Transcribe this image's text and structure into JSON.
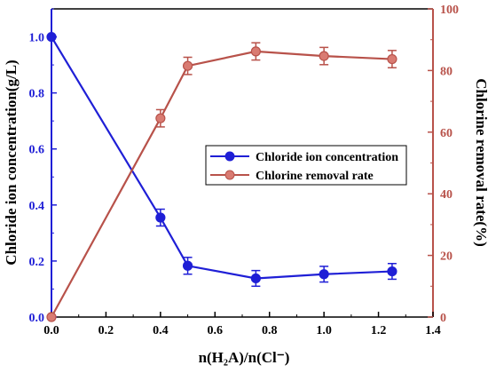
{
  "chart_data": {
    "type": "line",
    "title": "",
    "xlabel": "n(H₂A)/n(Cl⁻)",
    "ylabel_left": "Chloride ion concentration(g/L)",
    "ylabel_right": "Chlorine removal rate(%)",
    "xlim": [
      0.0,
      1.4
    ],
    "ylim_left": [
      0.0,
      1.1
    ],
    "ylim_right": [
      0,
      100
    ],
    "x_ticks": [
      "0.0",
      "0.2",
      "0.4",
      "0.6",
      "0.8",
      "1.0",
      "1.2",
      "1.4"
    ],
    "y_left_ticks": [
      "0.0",
      "0.2",
      "0.4",
      "0.6",
      "0.8",
      "1.0"
    ],
    "y_right_ticks": [
      "0",
      "20",
      "40",
      "60",
      "80",
      "100"
    ],
    "grid": false,
    "legend_position": "center-right",
    "series": [
      {
        "name": "Chloride ion concentration",
        "axis": "left",
        "color": "#1f1fd6",
        "marker": "circle",
        "x": [
          0.0,
          0.4,
          0.5,
          0.75,
          1.0,
          1.25
        ],
        "y": [
          1.0,
          0.355,
          0.183,
          0.138,
          0.153,
          0.163
        ],
        "error": [
          0.0,
          0.03,
          0.03,
          0.028,
          0.028,
          0.028
        ]
      },
      {
        "name": "Chlorine removal rate",
        "axis": "right",
        "color": "#b8524a",
        "marker": "circle",
        "x": [
          0.0,
          0.4,
          0.5,
          0.75,
          1.0,
          1.25
        ],
        "y": [
          0,
          64.5,
          81.5,
          86.2,
          84.7,
          83.7
        ],
        "error": [
          0,
          2.8,
          2.8,
          2.8,
          2.8,
          2.8
        ]
      }
    ]
  }
}
